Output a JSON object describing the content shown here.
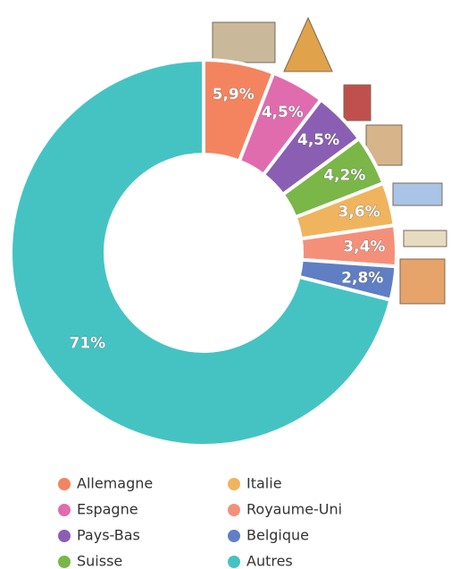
{
  "chart_data": {
    "type": "donut",
    "categories": [
      "Allemagne",
      "Espagne",
      "Pays-Bas",
      "Suisse",
      "Italie",
      "Royaume-Uni",
      "Belgique",
      "Autres"
    ],
    "values": [
      5.9,
      4.5,
      4.5,
      4.2,
      3.6,
      3.4,
      2.8,
      71
    ],
    "value_labels": [
      "5,9%",
      "4,5%",
      "4,5%",
      "4,2%",
      "3,6%",
      "3,4%",
      "2,8%",
      "71%"
    ],
    "colors": [
      "#f4845f",
      "#e06cae",
      "#8a5fb3",
      "#7ab648",
      "#f0b45e",
      "#f4907a",
      "#5f7ec4",
      "#45c3c3"
    ]
  }
}
